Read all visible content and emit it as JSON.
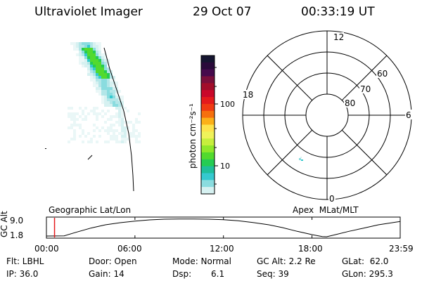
{
  "header": {
    "instrument": "Ultraviolet Imager",
    "date": "29 Oct 07",
    "time": "00:33:19 UT"
  },
  "colorbar": {
    "unit_label": "photon cm⁻²s⁻¹",
    "scale": "log",
    "ticks": [
      "100",
      "10"
    ],
    "colors": [
      "#151530",
      "#2a0a3a",
      "#460a4c",
      "#7a0f3b",
      "#a20d2a",
      "#c9082a",
      "#e41a1c",
      "#f03a12",
      "#f6700d",
      "#fbb018",
      "#fde34c",
      "#f0f25a",
      "#c7ef3d",
      "#90e82b",
      "#52da2e",
      "#25cc53",
      "#1fbf9b",
      "#35c9cf",
      "#8adcdf",
      "#d6f1f1"
    ]
  },
  "polar_grid": {
    "mlt_labels": [
      "12",
      "6",
      "0",
      "18"
    ],
    "lat_labels": [
      "60",
      "70",
      "80"
    ]
  },
  "timeline": {
    "left_label": "Geographic Lat/Lon",
    "right_label": "Apex  MLat/MLT",
    "y_axis_title": "GC Alt",
    "y_ticks": [
      "9.0",
      "1.8"
    ],
    "x_ticks": [
      "00:00",
      "06:00",
      "12:00",
      "18:00",
      "23:59"
    ],
    "current_time_marker": "00:33",
    "altitude_curve": [
      {
        "t": 0.0,
        "alt": 1.8
      },
      {
        "t": 1.2,
        "alt": 1.9
      },
      {
        "t": 2.0,
        "alt": 3.4
      },
      {
        "t": 3.0,
        "alt": 5.2
      },
      {
        "t": 4.0,
        "alt": 6.6
      },
      {
        "t": 5.0,
        "alt": 7.5
      },
      {
        "t": 6.0,
        "alt": 8.2
      },
      {
        "t": 7.0,
        "alt": 8.7
      },
      {
        "t": 8.0,
        "alt": 9.0
      },
      {
        "t": 9.0,
        "alt": 9.1
      },
      {
        "t": 10.0,
        "alt": 9.1
      },
      {
        "t": 11.0,
        "alt": 9.0
      },
      {
        "t": 12.0,
        "alt": 8.8
      },
      {
        "t": 13.0,
        "alt": 8.3
      },
      {
        "t": 14.0,
        "alt": 7.6
      },
      {
        "t": 15.0,
        "alt": 6.7
      },
      {
        "t": 16.0,
        "alt": 5.4
      },
      {
        "t": 17.0,
        "alt": 3.8
      },
      {
        "t": 18.0,
        "alt": 2.4
      },
      {
        "t": 18.7,
        "alt": 1.6
      },
      {
        "t": 19.0,
        "alt": 1.5
      },
      {
        "t": 19.6,
        "alt": 2.4
      },
      {
        "t": 20.5,
        "alt": 3.8
      },
      {
        "t": 21.5,
        "alt": 5.2
      },
      {
        "t": 22.5,
        "alt": 6.6
      },
      {
        "t": 23.98,
        "alt": 8.0
      }
    ]
  },
  "footer": {
    "flt": "Flt: LBHL",
    "ip": "IP: 36.0",
    "door": "Door: Open",
    "gain": "Gain: 14",
    "mode": "Mode: Normal",
    "dsp": "Dsp:",
    "dsp_value": "6.1",
    "gc_alt": "GC Alt: 2.2 Re",
    "seq": "Seq: 39",
    "glat": "GLat:  62.0",
    "glon": "GLon: 295.3"
  }
}
